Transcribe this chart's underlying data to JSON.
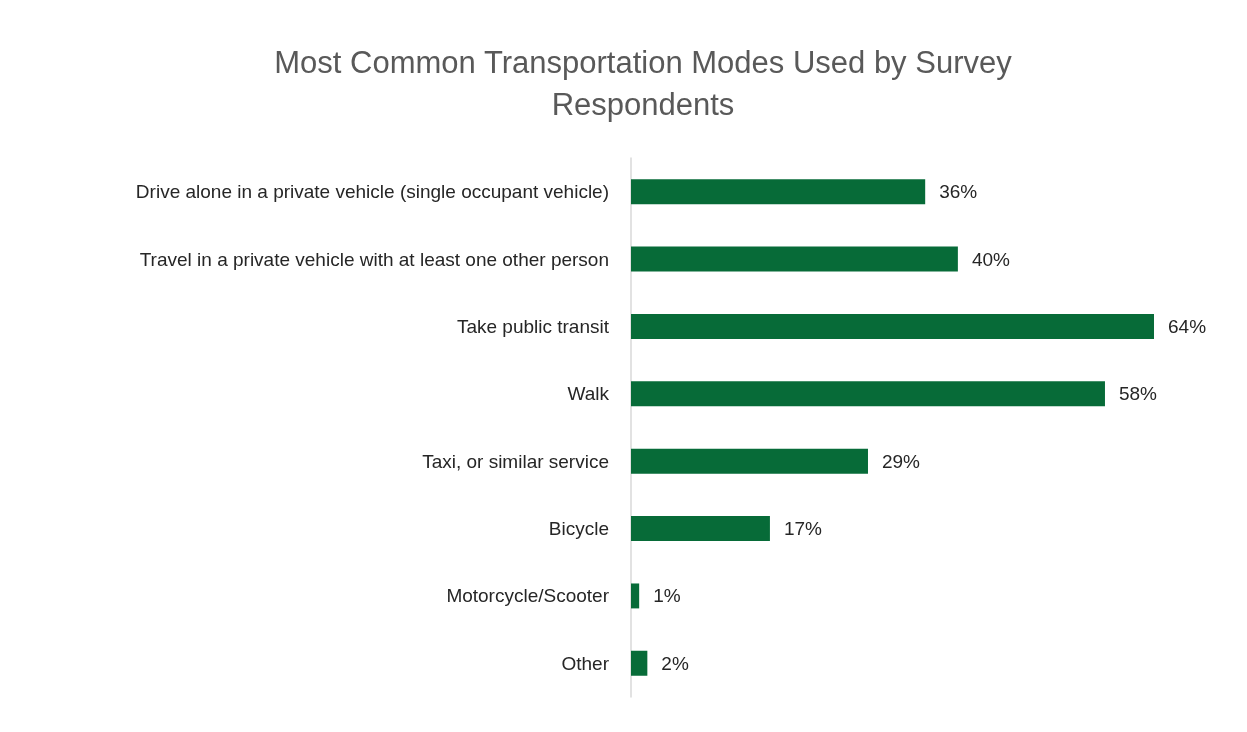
{
  "chart_data": {
    "type": "bar",
    "orientation": "horizontal",
    "title": "Most Common Transportation Modes Used by Survey\nRespondents",
    "categories": [
      "Drive alone in a private vehicle (single occupant vehicle)",
      "Travel in a private vehicle with at least one other person",
      "Take public transit",
      "Walk",
      "Taxi, or similar service",
      "Bicycle",
      "Motorcycle/Scooter",
      "Other"
    ],
    "values": [
      36,
      40,
      64,
      58,
      29,
      17,
      1,
      2
    ],
    "value_labels": [
      "36%",
      "40%",
      "64%",
      "58%",
      "29%",
      "17%",
      "1%",
      "2%"
    ],
    "color": "#076b38",
    "grid": false,
    "tick_labels": "y"
  }
}
